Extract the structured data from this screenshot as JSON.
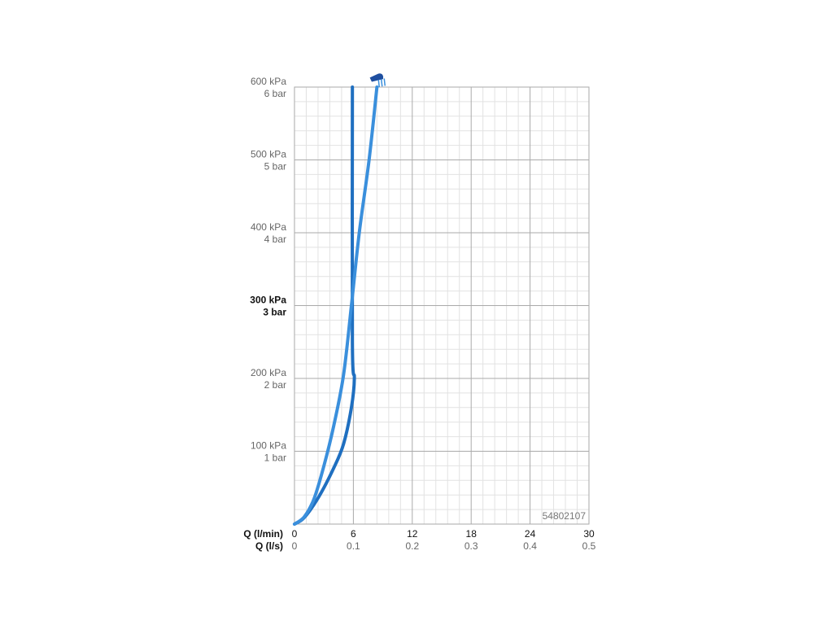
{
  "chart_data": {
    "type": "line",
    "xlabel": "Q (l/min)",
    "x2label": "Q (l/s)",
    "xlim": [
      0,
      30
    ],
    "xticks": [
      0,
      6,
      12,
      18,
      24,
      30
    ],
    "x2lim": [
      0,
      0.5
    ],
    "x2ticks": [
      0,
      0.1,
      0.2,
      0.3,
      0.4,
      0.5
    ],
    "xminorticks": [
      1.2,
      2.4,
      3.6,
      4.8,
      7.2,
      8.4,
      9.6,
      10.8,
      13.2,
      14.4,
      15.6,
      16.8,
      19.2,
      20.4,
      21.6,
      22.8,
      25.2,
      26.4,
      27.6,
      28.8
    ],
    "ylim": [
      0,
      600
    ],
    "yticks": [
      {
        "value": 100,
        "label": "100 kPa"
      },
      {
        "value": 200,
        "label": "200 kPa"
      },
      {
        "value": 300,
        "label": "300 kPa"
      },
      {
        "value": 400,
        "label": "400 kPa"
      },
      {
        "value": 500,
        "label": "500 kPa"
      },
      {
        "value": 600,
        "label": "600 kPa"
      }
    ],
    "ybarlim": [
      0,
      6
    ],
    "ybarticks": [
      {
        "value": 1,
        "label": "1 bar"
      },
      {
        "value": 2,
        "label": "2 bar"
      },
      {
        "value": 3,
        "label": "3 bar"
      },
      {
        "value": 4,
        "label": "4 bar"
      },
      {
        "value": 5,
        "label": "5 bar"
      },
      {
        "value": 6,
        "label": "6 bar"
      }
    ],
    "yminorticks": [
      20,
      40,
      60,
      80,
      120,
      140,
      160,
      180,
      220,
      240,
      260,
      280,
      320,
      340,
      360,
      380,
      420,
      440,
      460,
      480,
      520,
      540,
      560,
      580
    ],
    "bold_ytick": 300,
    "grid": true,
    "annotation": "54802107",
    "series": [
      {
        "color": "#1f6fc0",
        "x": [
          0,
          1,
          2.5,
          4,
          5,
          5.8,
          6.1,
          5.9,
          5.9
        ],
        "values": [
          0,
          9,
          38,
          77,
          110,
          160,
          200,
          250,
          600
        ]
      },
      {
        "color": "#3a8fdc",
        "x": [
          0,
          1,
          2,
          3,
          4,
          5,
          5.8,
          6.6,
          7.6,
          8.4
        ],
        "values": [
          0,
          10,
          35,
          80,
          135,
          205,
          300,
          400,
          500,
          600
        ]
      }
    ]
  }
}
